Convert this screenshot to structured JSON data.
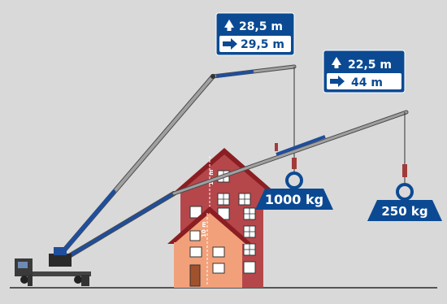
{
  "colors": {
    "background": "#d9d9d9",
    "boom_grey": "#9a9a9a",
    "boom_blue": "#1f4e9b",
    "label_blue": "#0b4a93",
    "house_back": "#b5474b",
    "house_front": "#f2a07a",
    "roof": "#8b1e22",
    "ground": "#555555",
    "hook_red": "#a33a3a"
  },
  "config_high": {
    "height_value": "28,5 m",
    "reach_value": "29,5 m",
    "load_value": "1000 kg"
  },
  "config_low": {
    "height_value": "22,5 m",
    "reach_value": "44 m",
    "load_value": "250 kg"
  },
  "buildings": {
    "back_height": "11 m",
    "front_height": "10 m"
  },
  "icons": {
    "up_arrow": "arrow-up-icon",
    "right_arrow": "arrow-right-icon",
    "weight": "weight-icon",
    "crane": "crane-icon",
    "house": "house-icon"
  }
}
